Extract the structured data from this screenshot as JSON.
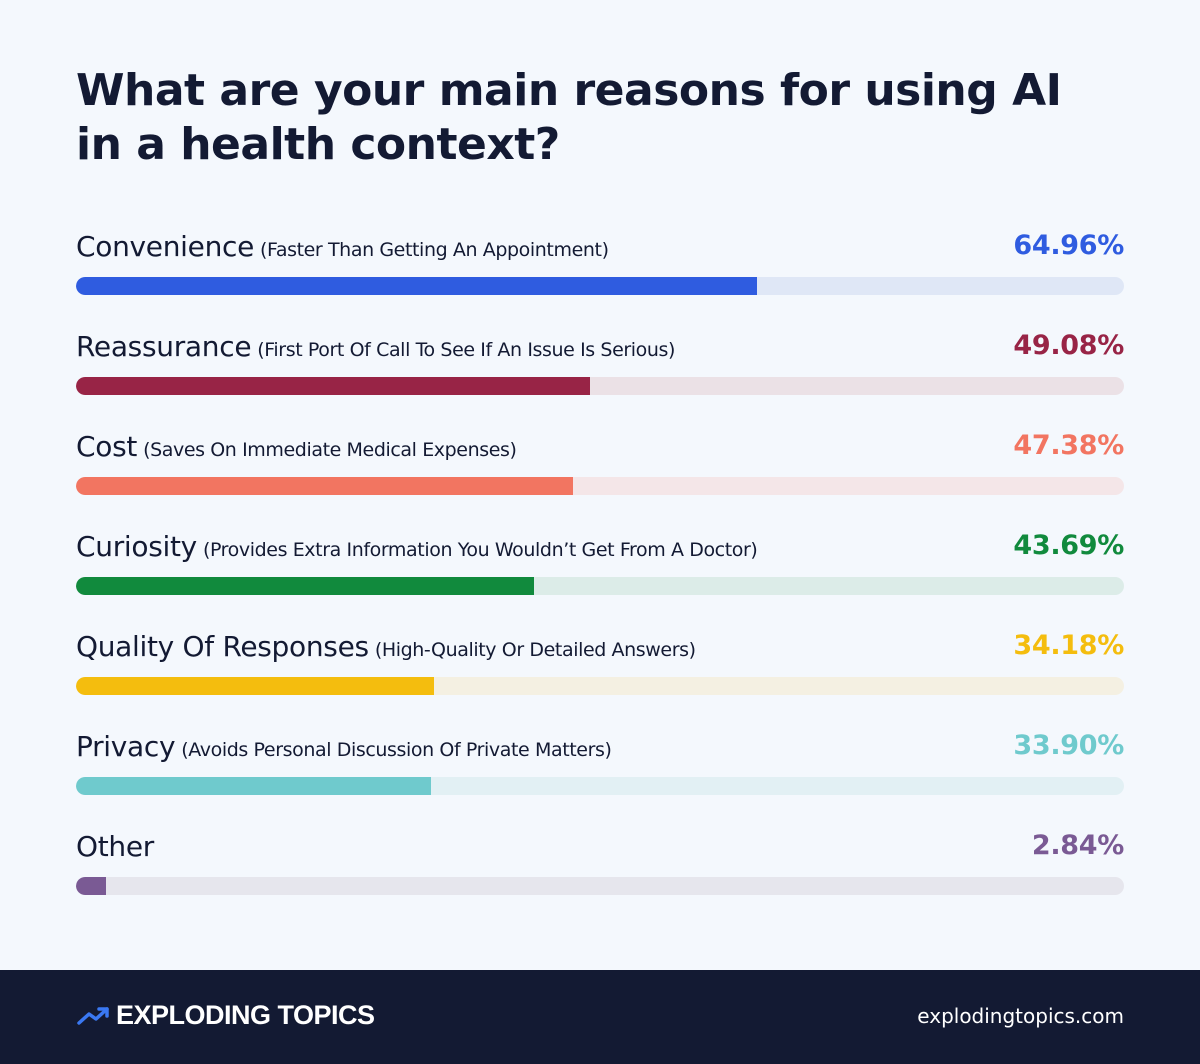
{
  "chart_data": {
    "type": "bar",
    "orientation": "horizontal",
    "title": "What are your main reasons for using AI in a health context?",
    "xlim": [
      0,
      100
    ],
    "unit": "%",
    "categories": [
      {
        "name": "Convenience",
        "description": "(Faster Than Getting An Appointment)",
        "value": 64.96,
        "label": "64.96%",
        "color": "#2f5ce0",
        "track_color": "#dfe7f6"
      },
      {
        "name": "Reassurance",
        "description": "(First Port Of Call To See If An Issue Is Serious)",
        "value": 49.08,
        "label": "49.08%",
        "color": "#982446",
        "track_color": "#ebe1e6"
      },
      {
        "name": "Cost",
        "description": "(Saves On Immediate Medical Expenses)",
        "value": 47.38,
        "label": "47.38%",
        "color": "#f27561",
        "track_color": "#f4e6e8"
      },
      {
        "name": "Curiosity",
        "description": "(Provides Extra Information You Wouldn’t Get From A Doctor)",
        "value": 43.69,
        "label": "43.69%",
        "color": "#118a3d",
        "track_color": "#dcece8"
      },
      {
        "name": "Quality Of Responses",
        "description": "(High-Quality Or Detailed Answers)",
        "value": 34.18,
        "label": "34.18%",
        "color": "#f4bd0e",
        "track_color": "#f4f0e2"
      },
      {
        "name": "Privacy",
        "description": "(Avoids Personal Discussion Of Private Matters)",
        "value": 33.9,
        "label": "33.90%",
        "color": "#6fcacd",
        "track_color": "#e2f0f4"
      },
      {
        "name": "Other",
        "description": "",
        "value": 2.84,
        "label": "2.84%",
        "color": "#7a5a94",
        "track_color": "#e6e6ed"
      }
    ]
  },
  "footer": {
    "brand": "EXPLODING TOPICS",
    "brand_icon": "trend-arrow-icon",
    "website": "explodingtopics.com",
    "background": "#131a33"
  }
}
